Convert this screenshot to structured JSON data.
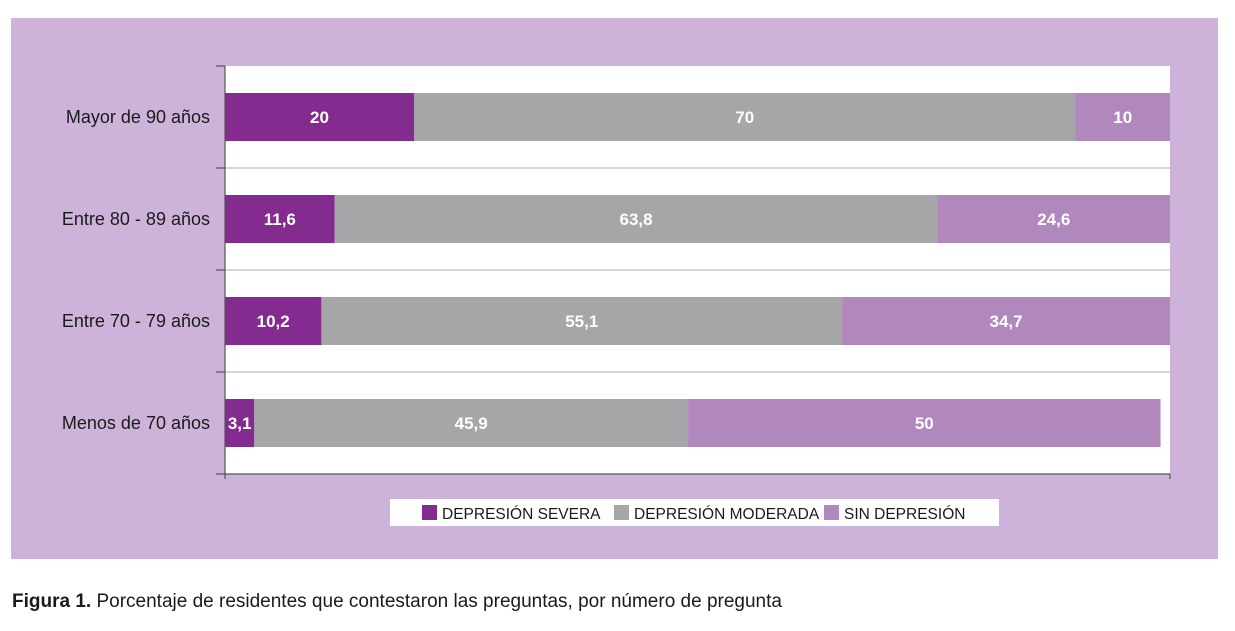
{
  "chart_data": {
    "type": "bar",
    "orientation": "horizontal",
    "stacked": true,
    "categories": [
      "Mayor de 90 años",
      "Entre 80 - 89 años",
      "Entre 70 - 79 años",
      "Menos de 70 años"
    ],
    "series": [
      {
        "name": "DEPRESIÓN SEVERA",
        "color": "#842b8f",
        "values": [
          20,
          11.6,
          10.2,
          3.1
        ],
        "labels": [
          "20",
          "11,6",
          "10,2",
          "3,1"
        ]
      },
      {
        "name": "DEPRESIÓN MODERADA",
        "color": "#a6a6a8",
        "values": [
          70,
          63.8,
          55.1,
          45.9
        ],
        "labels": [
          "70",
          "63,8",
          "55,1",
          "45,9"
        ]
      },
      {
        "name": "SIN DEPRESIÓN",
        "color": "#b188be",
        "values": [
          10,
          24.6,
          34.7,
          50
        ],
        "labels": [
          "10",
          "24,6",
          "34,7",
          "50"
        ]
      }
    ],
    "xlim": [
      0,
      100
    ],
    "legend_position": "bottom",
    "grid": true
  },
  "caption": {
    "label": "Figura 1.",
    "text": " Porcentaje de residentes que contestaron las preguntas, por número de pregunta"
  },
  "colors": {
    "panel_background": "#cdb3d9",
    "plot_background": "#ffffff",
    "bar_label": "#ffffff"
  }
}
